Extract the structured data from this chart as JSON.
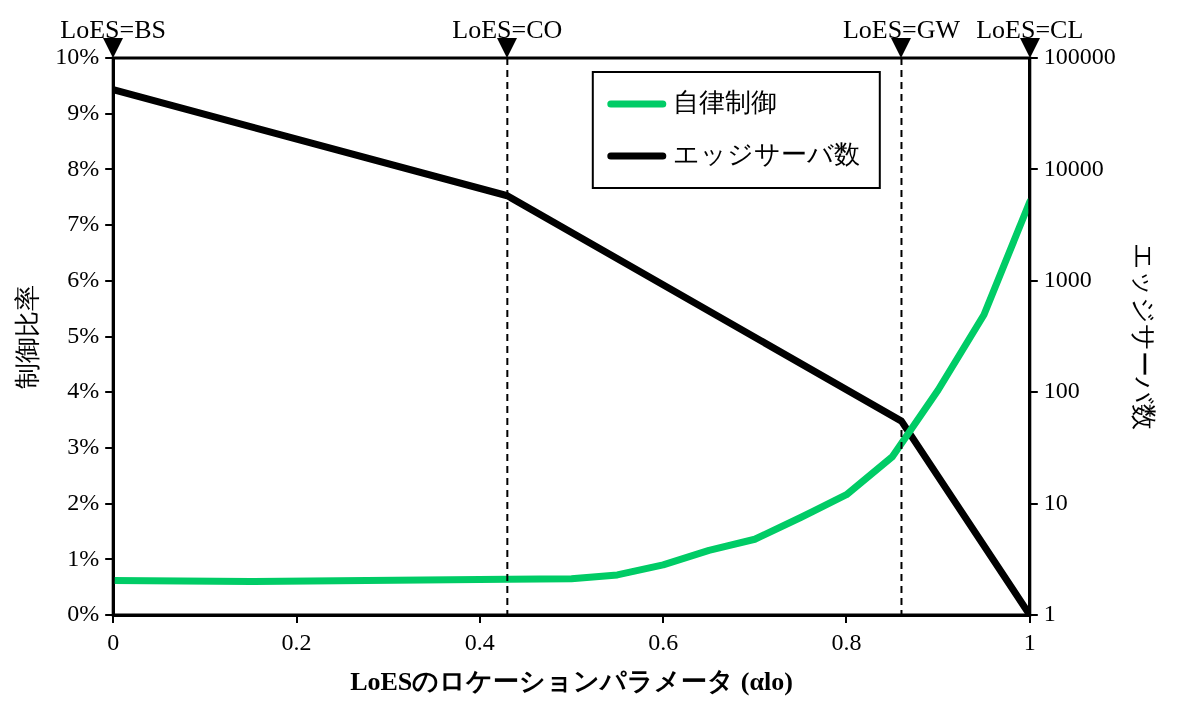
{
  "chart_data": {
    "type": "line",
    "xlabel": "LoESのロケーションパラメータ (αlo)",
    "ylabel": "制御比率",
    "y2label": "エッジサーバ数",
    "xlim": [
      0,
      1
    ],
    "xticks": [
      0,
      0.2,
      0.4,
      0.6,
      0.8,
      1
    ],
    "ylim": [
      0,
      10
    ],
    "yticks": [
      {
        "value": 0,
        "label": "0%"
      },
      {
        "value": 1,
        "label": "1%"
      },
      {
        "value": 2,
        "label": "2%"
      },
      {
        "value": 3,
        "label": "3%"
      },
      {
        "value": 4,
        "label": "4%"
      },
      {
        "value": 5,
        "label": "5%"
      },
      {
        "value": 6,
        "label": "6%"
      },
      {
        "value": 7,
        "label": "7%"
      },
      {
        "value": 8,
        "label": "8%"
      },
      {
        "value": 9,
        "label": "9%"
      },
      {
        "value": 10,
        "label": "10%"
      }
    ],
    "y2lim": [
      1,
      100000
    ],
    "y2ticks": [
      1,
      10,
      100,
      1000,
      10000,
      100000
    ],
    "log": "y2",
    "series": [
      {
        "name": "自律制御",
        "color": "#00cc66",
        "x": [
          0,
          0.15,
          0.43,
          0.5,
          0.55,
          0.6,
          0.65,
          0.7,
          0.75,
          0.8,
          0.85,
          0.9,
          0.95,
          1
        ],
        "values": [
          0.62,
          0.6,
          0.64,
          0.65,
          0.72,
          0.9,
          1.16,
          1.36,
          1.75,
          2.16,
          2.84,
          4.04,
          5.39,
          7.42
        ]
      },
      {
        "name": "エッジサーバ数",
        "color": "#000000",
        "axis": "y2",
        "x": [
          0,
          0.43,
          0.86,
          1
        ],
        "values": [
          52000,
          5800,
          55,
          1
        ]
      }
    ],
    "ref_lines": [
      {
        "axis": "x",
        "value": 0,
        "label": "LoES=BS",
        "line_style": "dashed"
      },
      {
        "axis": "x",
        "value": 0.43,
        "label": "LoES=CO",
        "line_style": "dashed"
      },
      {
        "axis": "x",
        "value": 0.86,
        "label": "LoES=GW",
        "line_style": "dashed"
      },
      {
        "axis": "x",
        "value": 1,
        "label": "LoES=CL",
        "line_style": "dashed"
      }
    ],
    "legend": "top right",
    "grid": false,
    "marker": "none",
    "line_style": "solid"
  }
}
